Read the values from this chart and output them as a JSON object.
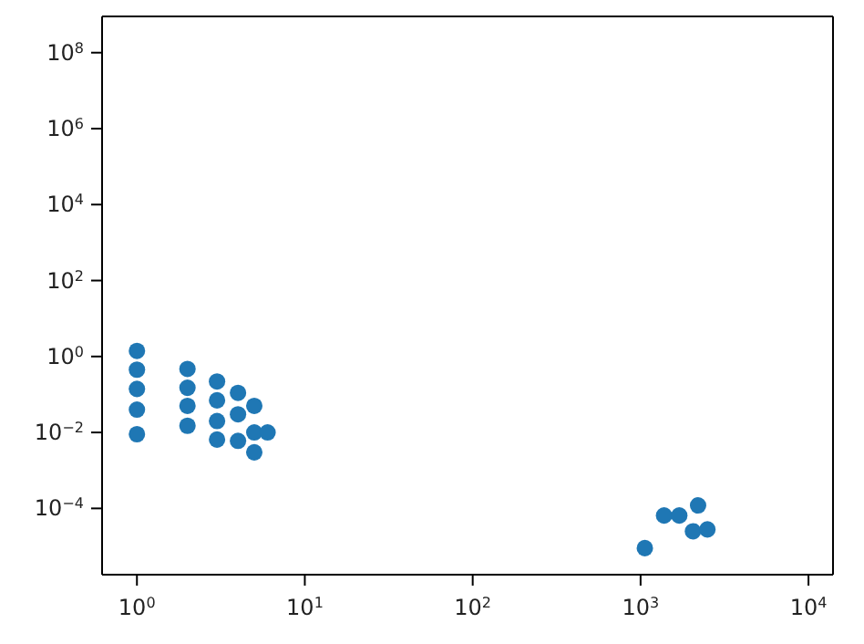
{
  "chart_data": {
    "type": "scatter",
    "log": "xy",
    "marker": "circle",
    "grid": false,
    "legend": false,
    "xlim": [
      0.62,
      14000
    ],
    "ylim": [
      1.8e-06,
      900000000.0
    ],
    "xticks": [
      {
        "value": 1,
        "label": "10$^{0}$"
      },
      {
        "value": 10,
        "label": "10$^{1}$"
      },
      {
        "value": 100,
        "label": "10$^{2}$"
      },
      {
        "value": 1000,
        "label": "10$^{3}$"
      },
      {
        "value": 10000,
        "label": "10$^{4}$"
      }
    ],
    "yticks": [
      {
        "value": 0.0001,
        "label": "10$^{−4}$"
      },
      {
        "value": 0.01,
        "label": "10$^{−2}$"
      },
      {
        "value": 1,
        "label": "10$^{0}$"
      },
      {
        "value": 100,
        "label": "10$^{2}$"
      },
      {
        "value": 10000,
        "label": "10$^{4}$"
      },
      {
        "value": 1000000,
        "label": "10$^{6}$"
      },
      {
        "value": 100000000,
        "label": "10$^{8}$"
      }
    ],
    "series": [
      {
        "color": "#1f77b4",
        "x": [
          1,
          1,
          1,
          1,
          1,
          2,
          2,
          2,
          2,
          3,
          3,
          3,
          3,
          4,
          4,
          4,
          5,
          5,
          5,
          6,
          1060,
          1380,
          1700,
          2200,
          2050,
          2500
        ],
        "values": [
          1.4,
          0.45,
          0.14,
          0.04,
          0.009,
          0.47,
          0.15,
          0.05,
          0.015,
          0.22,
          0.07,
          0.02,
          0.0065,
          0.11,
          0.03,
          0.006,
          0.05,
          0.01,
          0.003,
          0.01,
          9e-06,
          6.5e-05,
          6.5e-05,
          0.00012,
          2.5e-05,
          2.8e-05
        ]
      }
    ]
  }
}
